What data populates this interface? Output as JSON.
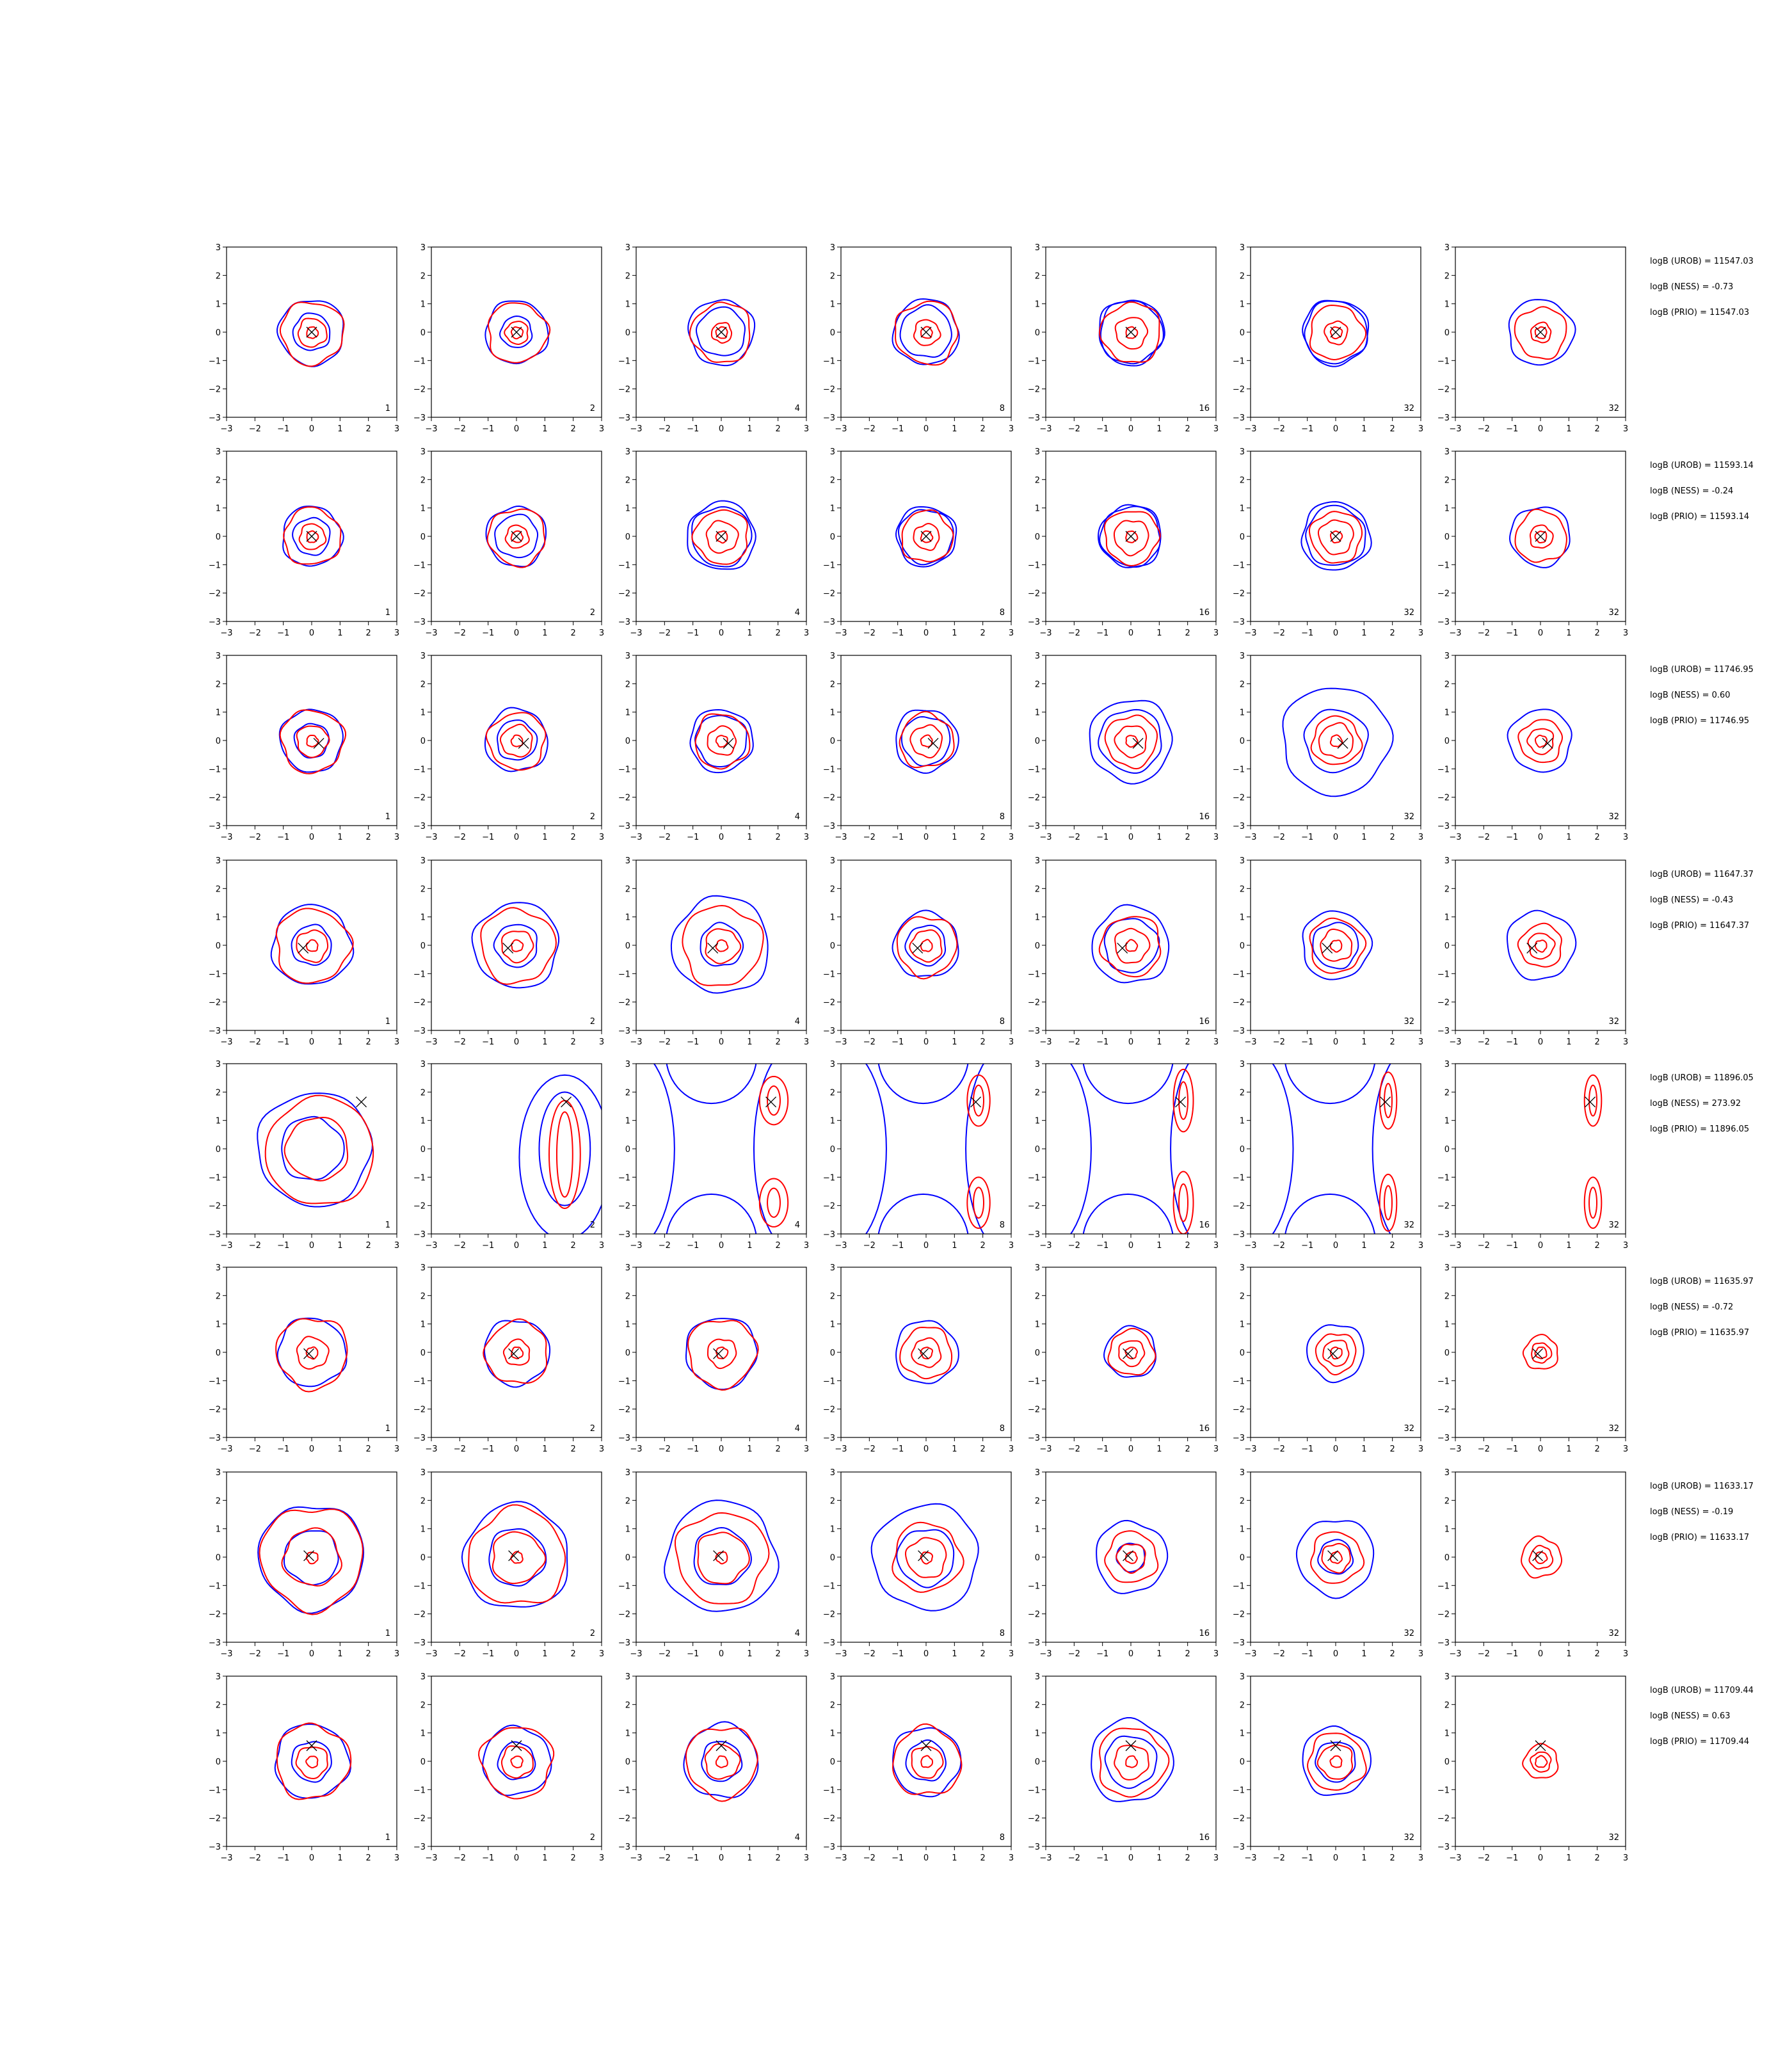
{
  "chart_data": {
    "type": "contour-grid",
    "rows": 8,
    "cols": 7,
    "xlim": [
      -3,
      3
    ],
    "ylim": [
      -3,
      3
    ],
    "x_ticks": [
      "−3",
      "−2",
      "−1",
      "0",
      "1",
      "2",
      "3"
    ],
    "y_ticks": [
      "3",
      "2",
      "1",
      "0",
      "−1",
      "−2",
      "−3"
    ],
    "panel_labels": [
      "1",
      "2",
      "4",
      "8",
      "16",
      "32",
      "32"
    ],
    "colors": {
      "blue": "#0000ff",
      "red": "#ff0000",
      "marker": "#000000"
    },
    "row_annotations": [
      [
        "logB (UROB) = 11547.03",
        "logB (NESS) = -0.73",
        "logB (PRIO) = 11547.03"
      ],
      [
        "logB (UROB) = 11593.14",
        "logB (NESS) = -0.24",
        "logB (PRIO) = 11593.14"
      ],
      [
        "logB (UROB) = 11746.95",
        "logB (NESS) = 0.60",
        "logB (PRIO) = 11746.95"
      ],
      [
        "logB (UROB) = 11647.37",
        "logB (NESS) = -0.43",
        "logB (PRIO) = 11647.37"
      ],
      [
        "logB (UROB) = 11896.05",
        "logB (NESS) = 273.92",
        "logB (PRIO) = 11896.05"
      ],
      [
        "logB (UROB) = 11635.97",
        "logB (NESS) = -0.72",
        "logB (PRIO) = 11635.97"
      ],
      [
        "logB (UROB) = 11633.17",
        "logB (NESS) = -0.19",
        "logB (PRIO) = 11633.17"
      ],
      [
        "logB (UROB) = 11709.44",
        "logB (NESS) = 0.63",
        "logB (PRIO) = 11709.44"
      ]
    ],
    "markers": [
      {
        "x": 0.0,
        "y": 0.0
      },
      {
        "x": 0.0,
        "y": 0.0
      },
      {
        "x": 0.25,
        "y": -0.1
      },
      {
        "x": -0.3,
        "y": -0.1
      },
      {
        "x": 1.75,
        "y": 1.65
      },
      {
        "x": -0.1,
        "y": -0.05
      },
      {
        "x": -0.1,
        "y": 0.05
      },
      {
        "x": 0.0,
        "y": 0.55
      }
    ],
    "row_contours": [
      {
        "blue": [
          [
            1.15,
            1.1,
            1.15,
            1.15,
            1.15,
            1.15,
            1.15
          ],
          [
            0.65,
            0.55,
            0.85,
            0.9,
            1.1,
            1.1,
            0
          ]
        ],
        "red": [
          [
            1.1,
            1.05,
            1.05,
            1.1,
            1.05,
            0.95,
            0.9
          ],
          [
            0.5,
            0.4,
            0.35,
            0.45,
            0.55,
            0.4,
            0.35
          ],
          [
            0.2,
            0.2,
            0.2,
            0.2,
            0.2,
            0.2,
            0.2
          ]
        ]
      },
      {
        "blue": [
          [
            1.05,
            1.05,
            1.05,
            1.05,
            1.05,
            1.05,
            1.05
          ],
          [
            0.65,
            0.75,
            1.2,
            0.95,
            1.1,
            1.2,
            0
          ]
        ],
        "red": [
          [
            1.0,
            1.0,
            0.95,
            0.9,
            0.95,
            0.9,
            0.9
          ],
          [
            0.45,
            0.4,
            0.55,
            0.45,
            0.6,
            0.6,
            0.4
          ],
          [
            0.2,
            0.2,
            0.2,
            0.2,
            0.2,
            0.2,
            0.2
          ]
        ]
      },
      {
        "blue": [
          [
            1.1,
            1.1,
            1.1,
            1.1,
            1.1,
            1.1,
            1.1
          ],
          [
            0.6,
            0.7,
            0.9,
            0.85,
            1.45,
            1.9,
            0
          ]
        ],
        "red": [
          [
            1.1,
            1.0,
            0.95,
            0.95,
            0.9,
            0.85,
            0.75
          ],
          [
            0.55,
            0.55,
            0.5,
            0.55,
            0.55,
            0.6,
            0.45
          ],
          [
            0.2,
            0.2,
            0.2,
            0.2,
            0.2,
            0.2,
            0.2
          ]
        ]
      },
      {
        "blue": [
          [
            1.4,
            1.5,
            1.7,
            1.15,
            1.35,
            1.2,
            1.2
          ],
          [
            0.7,
            0.75,
            0.75,
            0.7,
            0.95,
            0.8,
            0
          ]
        ],
        "red": [
          [
            1.3,
            1.3,
            1.4,
            1.05,
            1.05,
            0.95,
            0.75
          ],
          [
            0.55,
            0.55,
            0.6,
            0.55,
            0.6,
            0.55,
            0.45
          ],
          [
            0.2,
            0.2,
            0.2,
            0.2,
            0.2,
            0.2,
            0.2
          ]
        ]
      },
      {
        "blue": [
          [
            2.0,
            0,
            0,
            0,
            0,
            0,
            0
          ],
          [
            1.1,
            0,
            0,
            0,
            0,
            0,
            0
          ]
        ],
        "red": [
          [
            1.9,
            0,
            0,
            0,
            0,
            0,
            0
          ],
          [
            1.1,
            0,
            0,
            0,
            0,
            0,
            0
          ],
          [
            0.3,
            0,
            0,
            0,
            0,
            0,
            0
          ]
        ]
      },
      {
        "blue": [
          [
            1.2,
            1.15,
            1.25,
            1.1,
            0.9,
            1.0,
            0
          ]
        ],
        "red": [
          [
            1.25,
            1.1,
            1.2,
            0.9,
            0.8,
            0.7,
            0.6
          ],
          [
            0.55,
            0.45,
            0.5,
            0.5,
            0.45,
            0.45,
            0.35
          ],
          [
            0.2,
            0.2,
            0.2,
            0.2,
            0.2,
            0.2,
            0.2
          ]
        ]
      },
      {
        "blue": [
          [
            1.85,
            1.85,
            1.95,
            1.85,
            1.25,
            1.35,
            0
          ],
          [
            0.95,
            1.0,
            1.0,
            1.0,
            0.5,
            0.6,
            0
          ]
        ],
        "red": [
          [
            1.8,
            1.7,
            1.6,
            1.2,
            0.9,
            0.9,
            0.7
          ],
          [
            1.0,
            0.9,
            0.9,
            0.7,
            0.5,
            0.5,
            0.4
          ],
          [
            0.2,
            0.2,
            0.2,
            0.2,
            0.2,
            0.2,
            0.2
          ]
        ]
      },
      {
        "blue": [
          [
            1.3,
            1.2,
            1.3,
            1.2,
            1.45,
            1.2,
            0
          ],
          [
            0.7,
            0.65,
            0.7,
            0.7,
            0.9,
            0.7,
            0
          ]
        ],
        "red": [
          [
            1.3,
            1.25,
            1.25,
            1.2,
            1.2,
            1.0,
            0.6
          ],
          [
            0.55,
            0.55,
            0.6,
            0.55,
            0.6,
            0.6,
            0.35
          ],
          [
            0.2,
            0.2,
            0.2,
            0.2,
            0.2,
            0.2,
            0.2
          ]
        ]
      }
    ]
  }
}
